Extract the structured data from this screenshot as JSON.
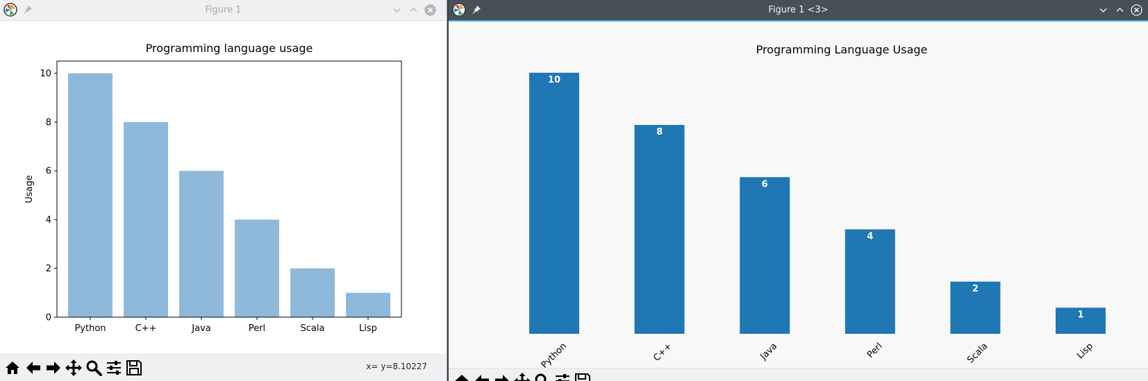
{
  "windows": [
    {
      "title": "Figure 1"
    },
    {
      "title": "Figure 1 <3>"
    }
  ],
  "chart_data": [
    {
      "type": "bar",
      "title": "Programming language usage",
      "ylabel": "Usage",
      "xlabel": "",
      "categories": [
        "Python",
        "C++",
        "Java",
        "Perl",
        "Scala",
        "Lisp"
      ],
      "values": [
        10,
        8,
        6,
        4,
        2,
        1
      ],
      "ylim": [
        0,
        10.5
      ],
      "yticks": [
        0,
        2,
        4,
        6,
        8,
        10
      ],
      "color": "#8fb9da",
      "grid": false
    },
    {
      "type": "bar",
      "title": "Programming Language Usage",
      "ylabel": "",
      "xlabel": "",
      "categories": [
        "Python",
        "C++",
        "Java",
        "Perl",
        "Scala",
        "Lisp"
      ],
      "values": [
        10,
        8,
        6,
        4,
        2,
        1
      ],
      "data_labels": [
        "10",
        "8",
        "6",
        "4",
        "2",
        "1"
      ],
      "ylim": [
        0,
        10.5
      ],
      "x_tick_rotation": 45,
      "color": "#1f77b4",
      "grid": false
    }
  ],
  "toolbar": {
    "coordinates": "x= y=8.10227",
    "icons": [
      "home-icon",
      "back-arrow-icon",
      "forward-arrow-icon",
      "pan-icon",
      "zoom-icon",
      "configure-subplots-icon",
      "save-icon"
    ]
  }
}
